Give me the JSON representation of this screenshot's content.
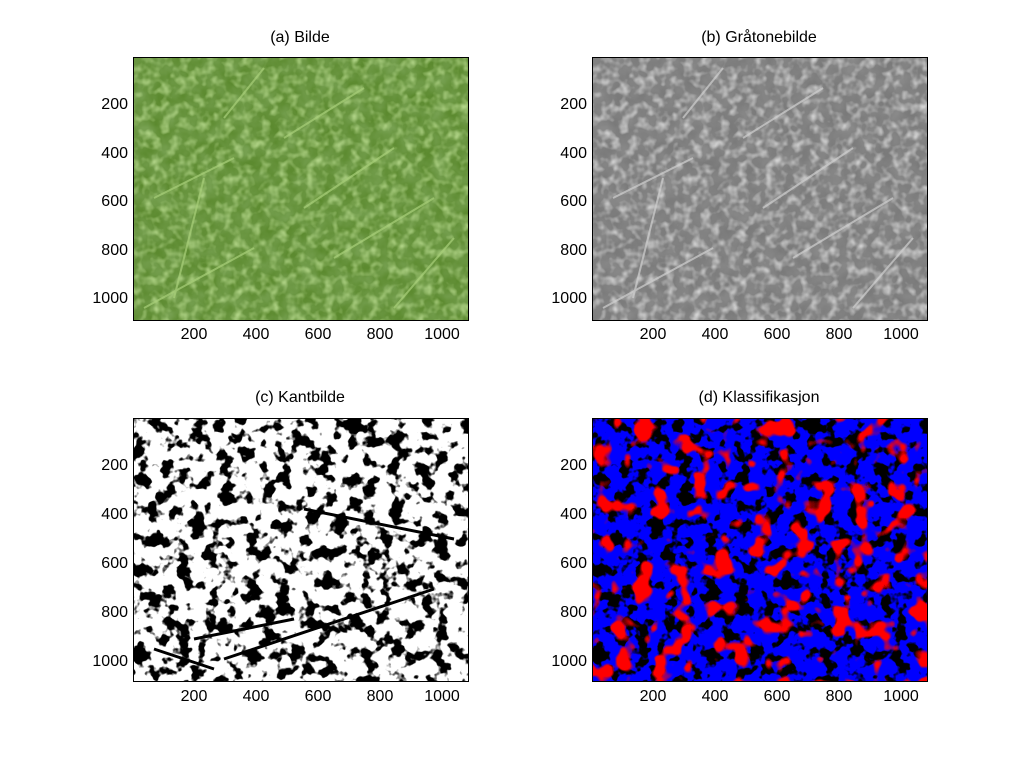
{
  "figure": {
    "panels": [
      {
        "id": "a",
        "title": "(a) Bilde",
        "kind": "photo-color"
      },
      {
        "id": "b",
        "title": "(b) Gråtonebilde",
        "kind": "photo-gray"
      },
      {
        "id": "c",
        "title": "(c) Kantbilde",
        "kind": "edge-binary"
      },
      {
        "id": "d",
        "title": "(d) Klassifikasjon",
        "kind": "classification"
      }
    ],
    "xticks": [
      "200",
      "400",
      "600",
      "800",
      "1000"
    ],
    "yticks": [
      "200",
      "400",
      "600",
      "800",
      "1000"
    ]
  },
  "colors": {
    "grass_dark": "#2f4a1a",
    "grass_mid": "#5c8a2f",
    "grass_light": "#8cc45a",
    "edge_black": "#000000",
    "edge_white": "#ffffff",
    "class_blue": "#0000ff",
    "class_red": "#ff0000",
    "class_black": "#000000"
  }
}
